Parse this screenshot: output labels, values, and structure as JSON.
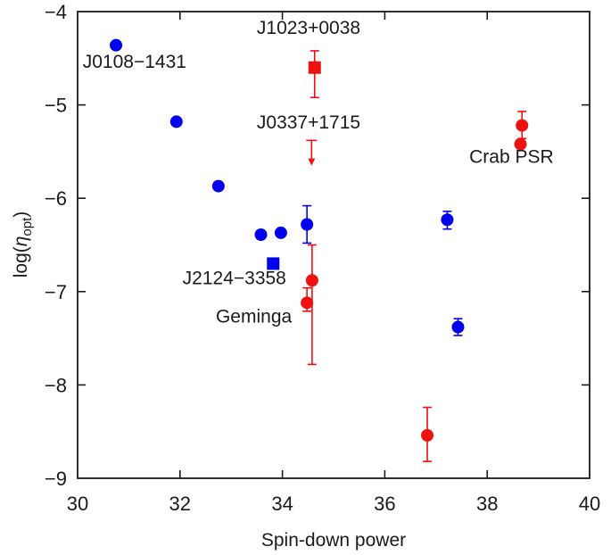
{
  "chart_data": {
    "type": "scatter",
    "title": "",
    "xlabel": "Spin-down power",
    "ylabel": "log(η_opt)",
    "ylabel_main": "log(",
    "ylabel_eta": "η",
    "ylabel_sub": "opt",
    "ylabel_close": ")",
    "xlim": [
      30,
      40
    ],
    "ylim": [
      -9,
      -4
    ],
    "xticks": [
      30,
      32,
      34,
      36,
      38,
      40
    ],
    "yticks": [
      -9,
      -8,
      -7,
      -6,
      -5,
      -4
    ],
    "xtick_labels": [
      "30",
      "32",
      "34",
      "36",
      "38",
      "40"
    ],
    "ytick_labels": [
      "−9",
      "−8",
      "−7",
      "−6",
      "−5",
      "−4"
    ],
    "grid": false,
    "colors": {
      "blue": "#0000ee",
      "red": "#ee1111",
      "axis": "#1a1a1a"
    },
    "series": [
      {
        "name": "blue-circles",
        "color": "blue",
        "marker": "circle",
        "points": [
          {
            "x": 30.75,
            "y": -4.36
          },
          {
            "x": 31.93,
            "y": -5.18
          },
          {
            "x": 32.75,
            "y": -5.87
          },
          {
            "x": 33.58,
            "y": -6.39
          },
          {
            "x": 33.97,
            "y": -6.37
          },
          {
            "x": 34.48,
            "y": -6.28,
            "ylo": -6.48,
            "yhi": -6.08
          },
          {
            "x": 37.22,
            "y": -6.23,
            "ylo": -6.33,
            "yhi": -6.14
          },
          {
            "x": 37.43,
            "y": -7.38,
            "ylo": -7.47,
            "yhi": -7.29
          }
        ]
      },
      {
        "name": "blue-squares",
        "color": "blue",
        "marker": "square",
        "points": [
          {
            "x": 33.82,
            "y": -6.7
          }
        ]
      },
      {
        "name": "red-circles",
        "color": "red",
        "marker": "circle",
        "points": [
          {
            "x": 34.58,
            "y": -6.88,
            "ylo": -7.78,
            "yhi": -6.5
          },
          {
            "x": 34.48,
            "y": -7.12,
            "ylo": -7.21,
            "yhi": -6.96
          },
          {
            "x": 36.83,
            "y": -8.54,
            "ylo": -8.82,
            "yhi": -8.24
          },
          {
            "x": 38.68,
            "y": -5.22,
            "ylo": -5.36,
            "yhi": -5.07
          },
          {
            "x": 38.65,
            "y": -5.42
          }
        ]
      },
      {
        "name": "red-squares",
        "color": "red",
        "marker": "square",
        "points": [
          {
            "x": 34.63,
            "y": -4.6,
            "ylo": -4.92,
            "yhi": -4.42
          }
        ]
      },
      {
        "name": "red-upper-limit",
        "color": "red",
        "marker": "arrow-down",
        "points": [
          {
            "x": 34.57,
            "yfrom": -5.38,
            "yto": -5.65
          }
        ]
      }
    ],
    "annotations": [
      {
        "text": "J0108−1431",
        "x": 30.1,
        "y": -4.6,
        "anchor": "start"
      },
      {
        "text": "J1023+0038",
        "x": 33.5,
        "y": -4.24,
        "anchor": "start"
      },
      {
        "text": "J0337+1715",
        "x": 33.5,
        "y": -5.25,
        "anchor": "start"
      },
      {
        "text": "Crab PSR",
        "x": 37.65,
        "y": -5.62,
        "anchor": "start"
      },
      {
        "text": "J2124−3358",
        "x": 32.05,
        "y": -6.92,
        "anchor": "start"
      },
      {
        "text": "Geminga",
        "x": 32.7,
        "y": -7.33,
        "anchor": "start"
      }
    ]
  }
}
